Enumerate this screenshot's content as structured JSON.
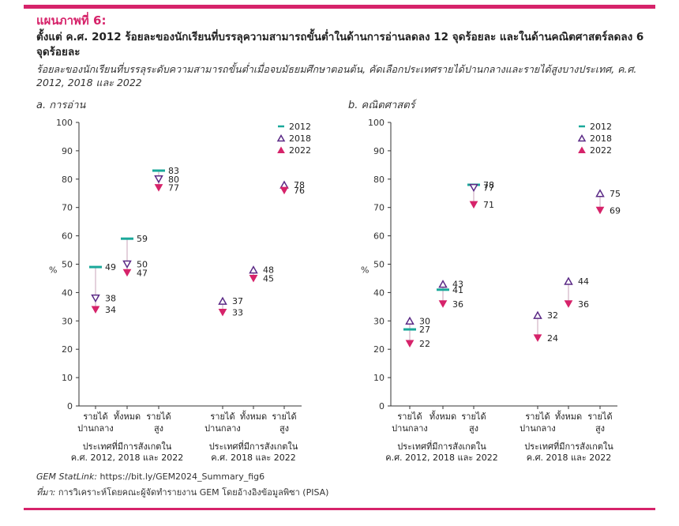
{
  "header": {
    "figure_label": "แผนภาพที่ 6:",
    "title": "ตั้งแต่ ค.ศ. 2012 ร้อยละของนักเรียนที่บรรลุความสามารถขั้นต่ำในด้านการอ่านลดลง 12 จุดร้อยละ และในด้านคณิตศาสตร์ลดลง 6 จุดร้อยละ",
    "subtitle": "ร้อยละของนักเรียนที่บรรลุระดับความสามารถขั้นต่ำเมื่อจบมัธยมศึกษาตอนต้น, คัดเลือกประเทศรายได้ปานกลางและรายได้สูงบางประเทศ, ค.ศ. 2012, 2018 และ 2022"
  },
  "footer": {
    "statlink_label": "GEM StatLink:",
    "statlink_url": "https://bit.ly/GEM2024_Summary_fig6",
    "source_label": "ที่มา:",
    "source_text": "การวิเคราะห์โดยคณะผู้จัดทำรายงาน GEM โดยอ้างอิงข้อมูลพิซา (PISA)"
  },
  "colors": {
    "y2012": "#1aa89a",
    "y2018": "#5b2a86",
    "y2022": "#d6236a",
    "accent": "#d6236a",
    "axis": "#333333"
  },
  "chart_data": [
    {
      "type": "scatter",
      "panel_title": "a. การอ่าน",
      "ylabel": "%",
      "ylim": [
        0,
        100
      ],
      "yticks": [
        0,
        10,
        20,
        30,
        40,
        50,
        60,
        70,
        80,
        90,
        100
      ],
      "legend": [
        "2012",
        "2018",
        "2022"
      ],
      "legend_position": "top-right",
      "categories": [
        "รายได้ ปานกลาง",
        "ทั้งหมด",
        "รายได้ สูง",
        "รายได้ ปานกลาง",
        "ทั้งหมด",
        "รายได้ สูง"
      ],
      "groups": [
        {
          "label": "ประเทศที่มีการสังเกตใน ค.ศ. 2012, 2018 และ 2022",
          "categories": [
            0,
            1,
            2
          ]
        },
        {
          "label": "ประเทศที่มีการสังเกตใน ค.ศ. 2018 และ 2022",
          "categories": [
            3,
            4,
            5
          ]
        }
      ],
      "series": [
        {
          "name": "2012",
          "values": [
            49,
            59,
            83,
            null,
            null,
            null
          ]
        },
        {
          "name": "2018",
          "values": [
            38,
            50,
            80,
            37,
            48,
            78
          ]
        },
        {
          "name": "2022",
          "values": [
            34,
            47,
            77,
            33,
            45,
            76
          ]
        }
      ]
    },
    {
      "type": "scatter",
      "panel_title": "b. คณิตศาสตร์",
      "ylabel": "%",
      "ylim": [
        0,
        100
      ],
      "yticks": [
        0,
        10,
        20,
        30,
        40,
        50,
        60,
        70,
        80,
        90,
        100
      ],
      "legend": [
        "2012",
        "2018",
        "2022"
      ],
      "legend_position": "top-right",
      "categories": [
        "รายได้ ปานกลาง",
        "ทั้งหมด",
        "รายได้ สูง",
        "รายได้ ปานกลาง",
        "ทั้งหมด",
        "รายได้ สูง"
      ],
      "groups": [
        {
          "label": "ประเทศที่มีการสังเกตใน ค.ศ. 2012, 2018 และ 2022",
          "categories": [
            0,
            1,
            2
          ]
        },
        {
          "label": "ประเทศที่มีการสังเกตใน ค.ศ. 2018 และ 2022",
          "categories": [
            3,
            4,
            5
          ]
        }
      ],
      "series": [
        {
          "name": "2012",
          "values": [
            27,
            41,
            78,
            null,
            null,
            null
          ]
        },
        {
          "name": "2018",
          "values": [
            30,
            43,
            77,
            32,
            44,
            75
          ]
        },
        {
          "name": "2022",
          "values": [
            22,
            36,
            71,
            24,
            36,
            69
          ]
        }
      ]
    }
  ]
}
